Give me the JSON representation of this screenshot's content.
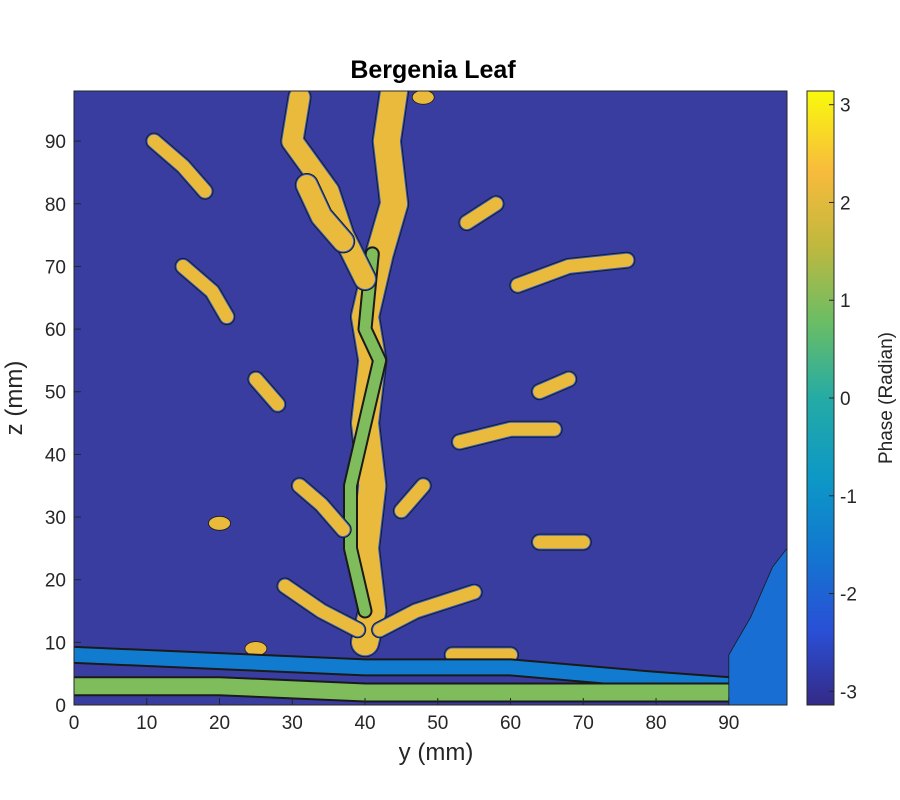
{
  "chart_data": {
    "type": "contour",
    "title": "Bergenia Leaf",
    "xlabel": "y (mm)",
    "ylabel": "z (mm)",
    "xlim": [
      0,
      98
    ],
    "ylim": [
      0,
      98
    ],
    "xticks": [
      0,
      10,
      20,
      30,
      40,
      50,
      60,
      70,
      80,
      90
    ],
    "yticks": [
      0,
      10,
      20,
      30,
      40,
      50,
      60,
      70,
      80,
      90
    ],
    "colorbar": {
      "label": "Phase (Radian)",
      "range": [
        -3.14,
        3.14
      ],
      "ticks": [
        -3,
        -2,
        -1,
        0,
        1,
        2,
        3
      ],
      "colormap": "parula"
    },
    "background_level": -2.8,
    "features": [
      {
        "kind": "midrib-stem",
        "path": [
          [
            44,
            98
          ],
          [
            43,
            90
          ],
          [
            44,
            80
          ],
          [
            42,
            72
          ],
          [
            40,
            62
          ],
          [
            41,
            55
          ],
          [
            40,
            45
          ],
          [
            41,
            35
          ],
          [
            40,
            25
          ],
          [
            41,
            15
          ],
          [
            40,
            10
          ]
        ],
        "phase": 2.2
      },
      {
        "kind": "midrib-core",
        "path": [
          [
            41,
            72
          ],
          [
            40,
            60
          ],
          [
            42,
            55
          ],
          [
            40,
            45
          ],
          [
            38,
            35
          ],
          [
            38,
            25
          ],
          [
            40,
            15
          ]
        ],
        "phase": 1.0
      },
      {
        "kind": "branch",
        "path": [
          [
            31,
            97
          ],
          [
            30,
            90
          ],
          [
            35,
            82
          ],
          [
            37,
            75
          ],
          [
            40,
            68
          ]
        ],
        "phase": 2.2
      },
      {
        "kind": "branch",
        "path": [
          [
            32,
            83
          ],
          [
            34,
            78
          ],
          [
            37,
            74
          ]
        ],
        "phase": 2.2
      },
      {
        "kind": "vein",
        "path": [
          [
            11,
            90
          ],
          [
            15,
            86
          ],
          [
            18,
            82
          ]
        ],
        "phase": 2.2
      },
      {
        "kind": "vein",
        "path": [
          [
            15,
            70
          ],
          [
            19,
            66
          ],
          [
            21,
            62
          ]
        ],
        "phase": 2.2
      },
      {
        "kind": "vein",
        "path": [
          [
            25,
            52
          ],
          [
            28,
            48
          ]
        ],
        "phase": 2.2
      },
      {
        "kind": "vein",
        "path": [
          [
            31,
            35
          ],
          [
            34,
            32
          ],
          [
            37,
            28
          ]
        ],
        "phase": 2.2
      },
      {
        "kind": "vein",
        "path": [
          [
            29,
            19
          ],
          [
            34,
            15
          ],
          [
            39,
            12
          ]
        ],
        "phase": 2.2
      },
      {
        "kind": "vein",
        "path": [
          [
            42,
            12
          ],
          [
            47,
            15
          ],
          [
            55,
            18
          ]
        ],
        "phase": 2.2
      },
      {
        "kind": "vein",
        "path": [
          [
            48,
            35
          ],
          [
            45,
            31
          ]
        ],
        "phase": 2.2
      },
      {
        "kind": "vein",
        "path": [
          [
            53,
            42
          ],
          [
            60,
            44
          ],
          [
            66,
            44
          ]
        ],
        "phase": 2.2
      },
      {
        "kind": "vein",
        "path": [
          [
            64,
            50
          ],
          [
            68,
            52
          ]
        ],
        "phase": 2.2
      },
      {
        "kind": "vein",
        "path": [
          [
            64,
            26
          ],
          [
            70,
            26
          ]
        ],
        "phase": 2.2
      },
      {
        "kind": "vein",
        "path": [
          [
            52,
            8
          ],
          [
            60,
            8
          ]
        ],
        "phase": 2.2
      },
      {
        "kind": "vein",
        "path": [
          [
            61,
            67
          ],
          [
            68,
            70
          ],
          [
            76,
            71
          ]
        ],
        "phase": 2.2
      },
      {
        "kind": "vein",
        "path": [
          [
            54,
            77
          ],
          [
            58,
            80
          ]
        ],
        "phase": 2.2
      },
      {
        "kind": "blob",
        "at": [
          20,
          29
        ],
        "phase": 2.2
      },
      {
        "kind": "blob",
        "at": [
          25,
          9
        ],
        "phase": 2.2
      },
      {
        "kind": "blob",
        "at": [
          48,
          97
        ],
        "phase": 2.2
      },
      {
        "kind": "baseline-band",
        "path": [
          [
            0,
            8
          ],
          [
            20,
            7
          ],
          [
            40,
            6
          ],
          [
            60,
            6
          ],
          [
            80,
            4
          ],
          [
            92,
            3
          ]
        ],
        "phase": -1.5
      },
      {
        "kind": "baseline-band",
        "path": [
          [
            0,
            3
          ],
          [
            20,
            3
          ],
          [
            40,
            2
          ],
          [
            60,
            2
          ],
          [
            80,
            2
          ],
          [
            92,
            2
          ]
        ],
        "phase": 1.0
      },
      {
        "kind": "edge-region",
        "at": [
          95,
          10
        ],
        "phase": -1.8
      }
    ]
  }
}
